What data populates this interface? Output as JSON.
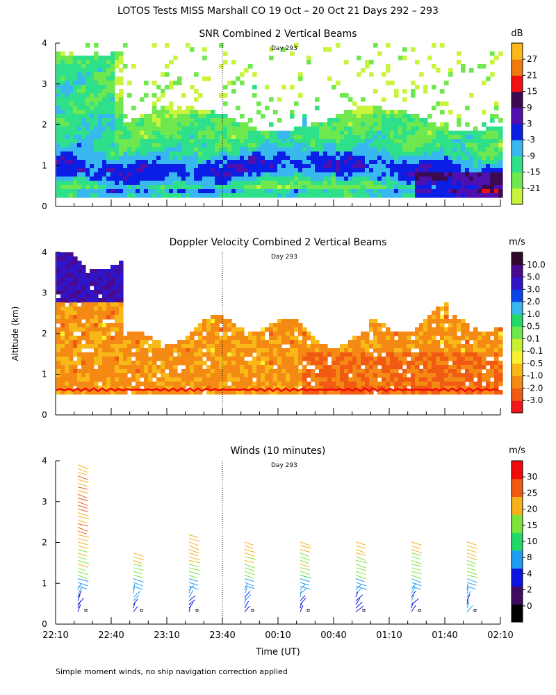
{
  "title": "LOTOS Tests MISS Marshall CO  19 Oct – 20 Oct 21 Days 292 – 293",
  "ylabel": "Altitude (km)",
  "xlabel": "Time (UT)",
  "footnote": "Simple moment winds, no ship navigation correction applied",
  "day_marker": "Day 293",
  "x_ticks": [
    "22:10",
    "22:40",
    "23:10",
    "23:40",
    "00:10",
    "00:40",
    "01:10",
    "01:40",
    "02:10"
  ],
  "y_ticks": [
    "0",
    "1",
    "2",
    "3",
    "4"
  ],
  "colors": {
    "snr": [
      "#c8f53c",
      "#6ee84e",
      "#2fe08a",
      "#39b8f0",
      "#0a1ee6",
      "#5010b0",
      "#3c0a50",
      "#f01010",
      "#f07a10",
      "#fbb81a"
    ],
    "dop": [
      "#f01818",
      "#f05a12",
      "#f48a14",
      "#f8b818",
      "#f8f030",
      "#c8f032",
      "#6ee84e",
      "#22d868",
      "#39b8f0",
      "#0a44e6",
      "#3014c8",
      "#4a0a90",
      "#300a2a"
    ],
    "wind": [
      "#000000",
      "#400a60",
      "#0a14e0",
      "#1e9cf0",
      "#22d868",
      "#7ce43a",
      "#f8b018",
      "#f05a12",
      "#f00a0a"
    ]
  },
  "chart_data": [
    {
      "type": "heatmap",
      "title": "SNR Combined 2 Vertical Beams",
      "unit": "dB",
      "xlim": [
        "22:10",
        "02:10"
      ],
      "ylim": [
        0,
        4
      ],
      "colorbar_ticks": [
        "-21",
        "-15",
        "-9",
        "-3",
        "3",
        "9",
        "15",
        "21",
        "27"
      ],
      "colorbar_levels": [
        -24,
        -18,
        -12,
        -6,
        0,
        6,
        12,
        18,
        24,
        30
      ],
      "description_of_data": "Strong (blue/purple) returns between 0.3 and 1.5 km, weaker (green/yellow) up to ~2.5 km, sparse returns to 4 km before 22:40"
    },
    {
      "type": "heatmap",
      "title": "Doppler Velocity Combined 2 Vertical Beams",
      "unit": "m/s",
      "xlim": [
        "22:10",
        "02:10"
      ],
      "ylim": [
        0,
        4
      ],
      "colorbar_ticks": [
        "-3.0",
        "-2.0",
        "-1.0",
        "-0.5",
        "-0.1",
        "0.1",
        "0.5",
        "1.0",
        "2.0",
        "3.0",
        "5.0",
        "10.0"
      ],
      "description_of_data": "Mostly weak downward (-0.5 to -2 m/s) velocities between 0.6 and 2.5 km, upward motion above 3 km before 22:30"
    },
    {
      "type": "scatter",
      "subtype": "wind-barbs",
      "title": "Winds (10 minutes)",
      "unit": "m/s",
      "xlim": [
        "22:10",
        "02:10"
      ],
      "ylim": [
        0,
        4
      ],
      "colorbar_ticks": [
        "0",
        "2",
        "4",
        "8",
        "10",
        "15",
        "20",
        "25",
        "30"
      ],
      "profile_times": [
        "22:25",
        "22:55",
        "23:25",
        "23:55",
        "00:25",
        "00:55",
        "01:25",
        "01:55"
      ]
    }
  ]
}
